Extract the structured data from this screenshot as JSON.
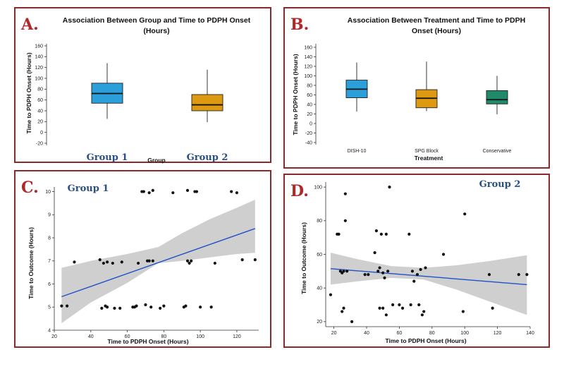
{
  "panels": {
    "A": {
      "letter": "A.",
      "title_line1": "Association Between Group and Time to PDPH Onset",
      "title_line2": "(Hours)",
      "xlabel": "Group",
      "ylabel": "Time to PDPH Onset (Hours)"
    },
    "B": {
      "letter": "B.",
      "title_line1": "Association Between Treatment and Time to PDPH",
      "title_line2": "Onset (Hours)",
      "xlabel": "Treatment",
      "ylabel": "Time to PDPH Onset (Hours)"
    },
    "C": {
      "letter": "C.",
      "group_label": "Group 1",
      "xlabel": "Time to PDPH Onset (Hours)",
      "ylabel": "Time to Outcome (Hours)"
    },
    "D": {
      "letter": "D.",
      "group_label": "Group 2",
      "xlabel": "Time to PDPH Onset (Hours)",
      "ylabel": "Time to Outcome (Hours)"
    }
  },
  "colors": {
    "frame": "#8b2a2a",
    "letter": "#b0282a",
    "group_label": "#2a4f86",
    "blue_box": "#2b9fd9",
    "orange_box": "#dd9a11",
    "green_box": "#1e8a6a",
    "regression_line": "#1f52c8",
    "confidence_band": "#cfcfcf",
    "points": "#111111"
  },
  "chart_data": [
    {
      "panel": "A",
      "type": "box",
      "categories": [
        "Group 1",
        "Group 2"
      ],
      "ylim": [
        -20,
        160
      ],
      "yticks": [
        -20,
        0,
        20,
        40,
        60,
        80,
        100,
        120,
        140,
        160
      ],
      "boxes": [
        {
          "category": "Group 1",
          "min": 25,
          "q1": 54,
          "median": 72,
          "q3": 91,
          "max": 128,
          "color": "#2b9fd9"
        },
        {
          "category": "Group 2",
          "min": 19,
          "q1": 40,
          "median": 51,
          "q3": 70,
          "max": 116,
          "color": "#dd9a11"
        }
      ]
    },
    {
      "panel": "B",
      "type": "box",
      "categories": [
        "DISH-10",
        "SPG Block",
        "Conservative"
      ],
      "ylim": [
        -40,
        160
      ],
      "yticks": [
        -40,
        -20,
        0,
        20,
        40,
        60,
        80,
        100,
        120,
        140,
        160
      ],
      "boxes": [
        {
          "category": "DISH-10",
          "min": 25,
          "q1": 54,
          "median": 72,
          "q3": 91,
          "max": 128,
          "color": "#2b9fd9"
        },
        {
          "category": "SPG Block",
          "min": 26,
          "q1": 33,
          "median": 53,
          "q3": 71,
          "max": 130,
          "color": "#dd9a11"
        },
        {
          "category": "Conservative",
          "min": 19,
          "q1": 41,
          "median": 50,
          "q3": 69,
          "max": 100,
          "color": "#1e8a6a"
        }
      ]
    },
    {
      "panel": "C",
      "type": "scatter",
      "xlim": [
        20,
        132
      ],
      "ylim": [
        4,
        10.2
      ],
      "xticks": [
        20,
        40,
        60,
        80,
        100,
        120
      ],
      "yticks": [
        4,
        5,
        6,
        7,
        8,
        9,
        10
      ],
      "points": [
        [
          24,
          5.05
        ],
        [
          27,
          5.05
        ],
        [
          31,
          6.95
        ],
        [
          45,
          7.05
        ],
        [
          46,
          4.95
        ],
        [
          47,
          6.9
        ],
        [
          48,
          5.05
        ],
        [
          49,
          5.0
        ],
        [
          49,
          6.95
        ],
        [
          52,
          6.9
        ],
        [
          53,
          4.95
        ],
        [
          56,
          4.95
        ],
        [
          57,
          6.95
        ],
        [
          63,
          5.0
        ],
        [
          64,
          5.0
        ],
        [
          65,
          5.05
        ],
        [
          66,
          6.9
        ],
        [
          68,
          10.0
        ],
        [
          69,
          10.0
        ],
        [
          70,
          5.1
        ],
        [
          71,
          7.0
        ],
        [
          72,
          9.95
        ],
        [
          72,
          7.0
        ],
        [
          73,
          5.0
        ],
        [
          74,
          10.05
        ],
        [
          74,
          7.0
        ],
        [
          78,
          4.95
        ],
        [
          80,
          5.05
        ],
        [
          85,
          9.95
        ],
        [
          91,
          5.0
        ],
        [
          92,
          5.05
        ],
        [
          93,
          10.05
        ],
        [
          93,
          7.0
        ],
        [
          94,
          6.9
        ],
        [
          95,
          7.0
        ],
        [
          97,
          10.0
        ],
        [
          98,
          10.0
        ],
        [
          100,
          5.0
        ],
        [
          106,
          5.0
        ],
        [
          108,
          6.9
        ],
        [
          117,
          10.0
        ],
        [
          120,
          9.95
        ],
        [
          123,
          7.05
        ],
        [
          130,
          7.05
        ]
      ],
      "fit": {
        "x": [
          24,
          130
        ],
        "y": [
          5.45,
          8.4
        ]
      },
      "band_upper": [
        [
          24,
          6.7
        ],
        [
          40,
          7.0
        ],
        [
          60,
          7.3
        ],
        [
          77,
          7.6
        ],
        [
          90,
          8.2
        ],
        [
          105,
          8.8
        ],
        [
          120,
          9.3
        ],
        [
          130,
          9.65
        ]
      ],
      "band_lower": [
        [
          24,
          4.3
        ],
        [
          40,
          5.2
        ],
        [
          60,
          6.05
        ],
        [
          77,
          6.9
        ],
        [
          90,
          7.0
        ],
        [
          105,
          7.15
        ],
        [
          120,
          7.3
        ],
        [
          130,
          7.35
        ]
      ]
    },
    {
      "panel": "D",
      "type": "scatter",
      "xlim": [
        15,
        140
      ],
      "ylim": [
        17,
        103
      ],
      "xticks": [
        20,
        40,
        60,
        80,
        100,
        120,
        140
      ],
      "yticks": [
        20,
        40,
        60,
        80,
        100
      ],
      "points": [
        [
          18,
          36
        ],
        [
          22,
          72
        ],
        [
          23,
          72
        ],
        [
          24,
          50
        ],
        [
          25,
          49
        ],
        [
          25,
          26
        ],
        [
          26,
          50
        ],
        [
          26,
          28
        ],
        [
          27,
          96
        ],
        [
          27,
          80
        ],
        [
          28,
          50
        ],
        [
          31,
          20
        ],
        [
          39,
          48
        ],
        [
          41,
          48
        ],
        [
          45,
          61
        ],
        [
          46,
          74
        ],
        [
          47,
          50
        ],
        [
          48,
          52
        ],
        [
          48,
          28
        ],
        [
          49,
          72
        ],
        [
          50,
          49
        ],
        [
          50,
          28
        ],
        [
          51,
          46
        ],
        [
          52,
          72
        ],
        [
          52,
          24
        ],
        [
          53,
          50
        ],
        [
          54,
          100
        ],
        [
          56,
          30
        ],
        [
          60,
          30
        ],
        [
          62,
          28
        ],
        [
          66,
          72
        ],
        [
          67,
          30
        ],
        [
          68,
          50
        ],
        [
          69,
          44
        ],
        [
          71,
          48
        ],
        [
          72,
          30
        ],
        [
          73,
          51
        ],
        [
          74,
          24
        ],
        [
          75,
          26
        ],
        [
          76,
          52
        ],
        [
          87,
          60
        ],
        [
          99,
          26
        ],
        [
          100,
          84
        ],
        [
          115,
          48
        ],
        [
          117,
          28
        ],
        [
          133,
          48
        ],
        [
          138,
          48
        ]
      ],
      "fit": {
        "x": [
          18,
          138
        ],
        "y": [
          51.5,
          42.0
        ]
      },
      "band_upper": [
        [
          18,
          61
        ],
        [
          35,
          57
        ],
        [
          55,
          53
        ],
        [
          75,
          52
        ],
        [
          95,
          53.5
        ],
        [
          115,
          56
        ],
        [
          138,
          59.5
        ]
      ],
      "band_lower": [
        [
          18,
          42
        ],
        [
          35,
          44
        ],
        [
          55,
          46
        ],
        [
          75,
          45
        ],
        [
          95,
          39
        ],
        [
          115,
          32
        ],
        [
          138,
          24
        ]
      ]
    }
  ]
}
